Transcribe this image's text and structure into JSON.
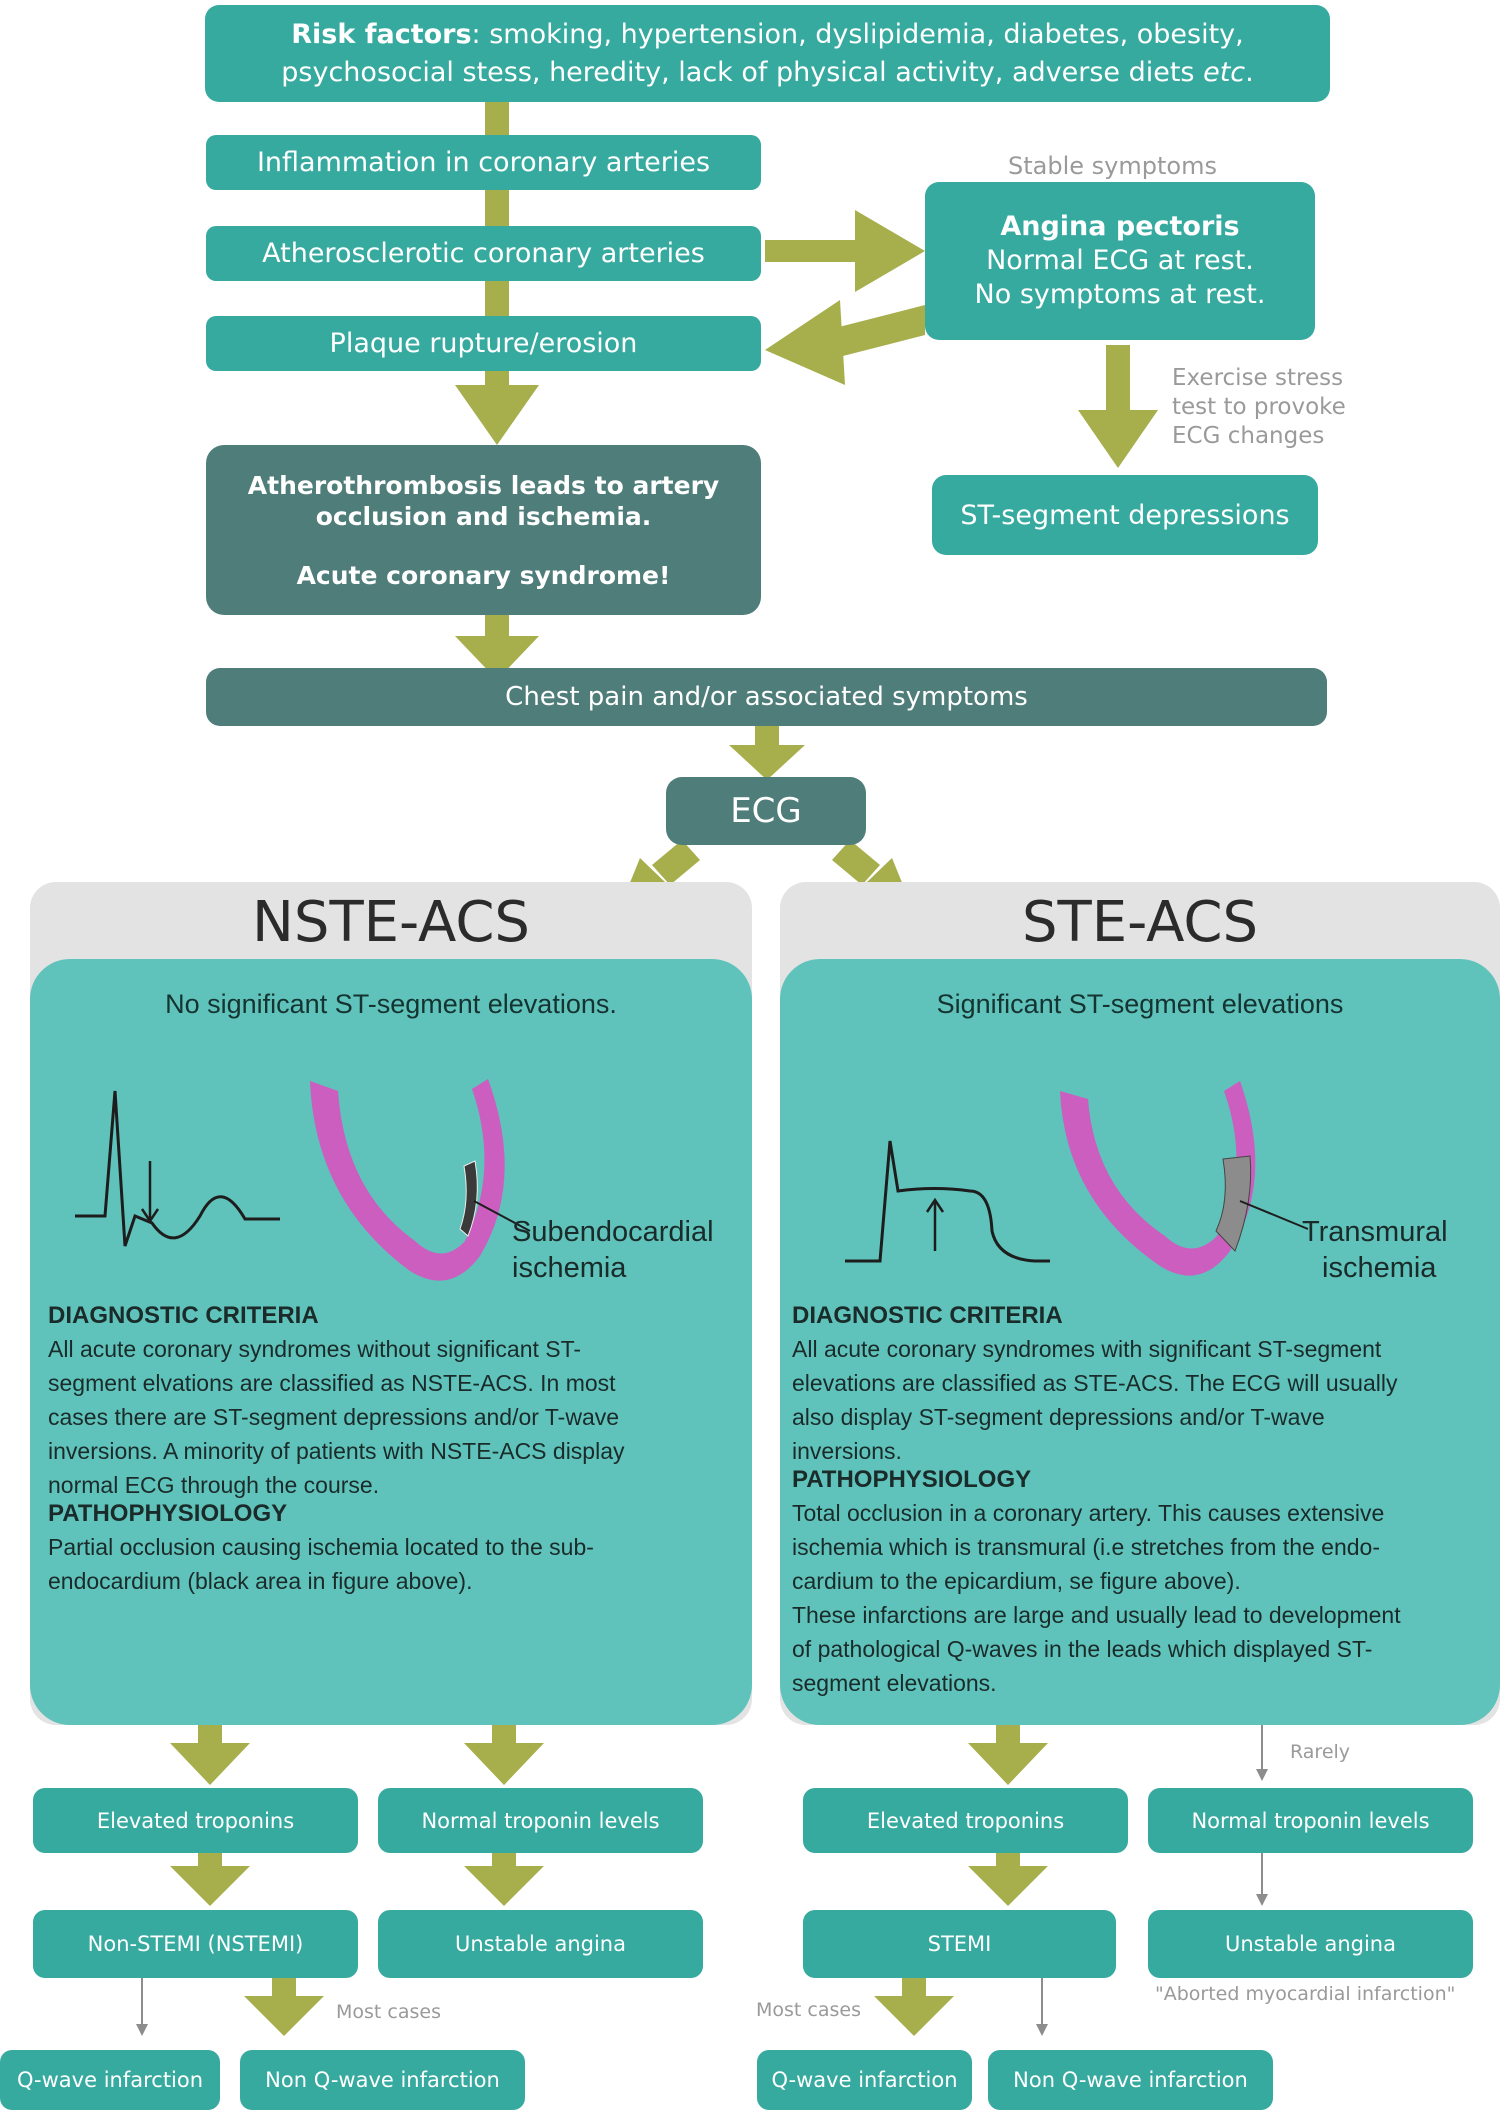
{
  "colors": {
    "teal_box": "#37aaa0",
    "dark_box": "#4f7e7a",
    "panel_bg": "#e3e3e3",
    "inner_panel": "#5fc3bb",
    "arrow": "#a7ae4c",
    "myocardium": "#cc5ec0",
    "note_text": "#9a9a9a"
  },
  "top": {
    "risk_factors_heading": "Risk factors",
    "risk_factors_line1": ": smoking, hypertension, dyslipidemia, diabetes, obesity,",
    "risk_factors_line2_prefix": "psychosocial stess, heredity, lack of physical activity, adverse diets ",
    "risk_factors_line2_etc": "etc",
    "risk_factors_line2_suffix": ".",
    "inflammation": "Inflammation in coronary arteries",
    "atherosclerotic": "Atherosclerotic coronary arteries",
    "plaque": "Plaque rupture/erosion",
    "atherothrombosis_line1": "Atherothrombosis leads to artery",
    "atherothrombosis_line2": "occlusion and ischemia.",
    "acs_exclaim": "Acute coronary syndrome!",
    "chest_pain": "Chest pain and/or associated symptoms",
    "ecg": "ECG"
  },
  "stable": {
    "note": "Stable symptoms",
    "title": "Angina pectoris",
    "line1": "Normal ECG at rest.",
    "line2": "No symptoms at rest.",
    "exercise_line1": "Exercise stress",
    "exercise_line2": "test to provoke",
    "exercise_line3": "ECG changes",
    "st_depressions": "ST-segment depressions"
  },
  "nste": {
    "title": "NSTE-ACS",
    "subtitle": "No significant ST-segment elevations.",
    "ischemia_line1": "Subendocardial",
    "ischemia_line2": "ischemia",
    "diag_heading": "DIAGNOSTIC CRITERIA",
    "diag_lines": [
      "All acute coronary syndromes without significant ST-",
      "segment elvations are classified as NSTE-ACS. In most",
      "cases there are ST-segment depressions and/or T-wave",
      "inversions. A minority of patients with NSTE-ACS display",
      "normal ECG through the course."
    ],
    "patho_heading": "PATHOPHYSIOLOGY",
    "patho_lines": [
      "Partial occlusion causing ischemia located to the sub-",
      "endocardium (black area in figure above)."
    ],
    "elevated": "Elevated troponins",
    "normal": "Normal troponin levels",
    "nstemi": "Non-STEMI (NSTEMI)",
    "unstable": "Unstable angina",
    "most_cases": "Most cases",
    "q_wave": "Q-wave infarction",
    "non_q_wave": "Non Q-wave infarction"
  },
  "ste": {
    "title": "STE-ACS",
    "subtitle": "Significant ST-segment elevations",
    "ischemia_line1": "Transmural",
    "ischemia_line2": "ischemia",
    "diag_heading": "DIAGNOSTIC CRITERIA",
    "diag_lines": [
      "All acute coronary syndromes with significant ST-segment",
      "elevations are classified as STE-ACS. The ECG will usually",
      "also display ST-segment depressions and/or T-wave",
      "inversions."
    ],
    "patho_heading": "PATHOPHYSIOLOGY",
    "patho_lines": [
      "Total occlusion in a coronary artery. This causes extensive",
      "ischemia which is transmural (i.e stretches from the endo-",
      "cardium to the epicardium, se figure above).",
      "These infarctions are large and usually lead to development",
      "of pathological Q-waves in the leads which displayed ST-",
      "segment elevations."
    ],
    "rarely": "Rarely",
    "elevated": "Elevated troponins",
    "normal": "Normal troponin levels",
    "stemi": "STEMI",
    "unstable": "Unstable angina",
    "aborted": "\"Aborted myocardial infarction\"",
    "most_cases": "Most cases",
    "q_wave": "Q-wave infarction",
    "non_q_wave": "Non Q-wave infarction"
  }
}
